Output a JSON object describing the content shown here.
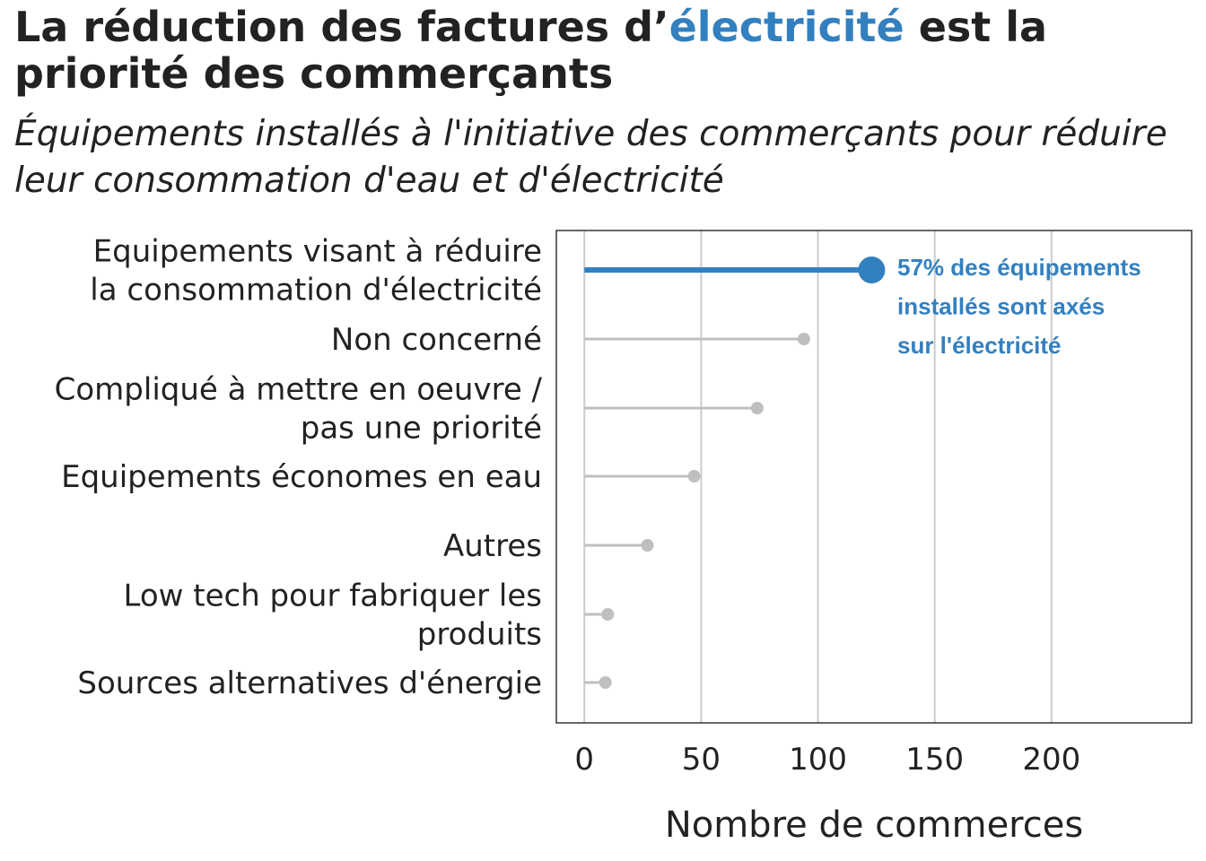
{
  "title": {
    "part1": "La réduction des factures d’",
    "highlight": "électricité",
    "part2": " est la priorité des commerçants"
  },
  "subtitle": "Équipements installés à l'initiative des commerçants pour réduire leur consommation d'eau et d'électricité",
  "colors": {
    "highlight": "#3380c0",
    "muted": "#bfbfbf",
    "grid": "#cccccc",
    "text": "#222222"
  },
  "chart_data": {
    "type": "lollipop",
    "orientation": "horizontal",
    "categories": [
      [
        "Equipements visant à réduire",
        "la consommation d'électricité"
      ],
      [
        "Non concerné"
      ],
      [
        "Compliqué à mettre en oeuvre /",
        "pas une priorité"
      ],
      [
        "Equipements économes en eau"
      ],
      [
        "Autres"
      ],
      [
        "Low tech pour fabriquer les",
        "produits"
      ],
      [
        "Sources alternatives d'énergie"
      ]
    ],
    "values": [
      123,
      94,
      74,
      47,
      27,
      10,
      9
    ],
    "highlighted_index": 0,
    "xlabel": "Nombre de commerces",
    "xticks": [
      0,
      50,
      100,
      150,
      200
    ],
    "xlim": [
      -12,
      260
    ],
    "grid": "vertical",
    "annotation": {
      "lines": [
        "57% des équipements",
        "installés sont axés",
        "sur l'électricité"
      ]
    }
  }
}
